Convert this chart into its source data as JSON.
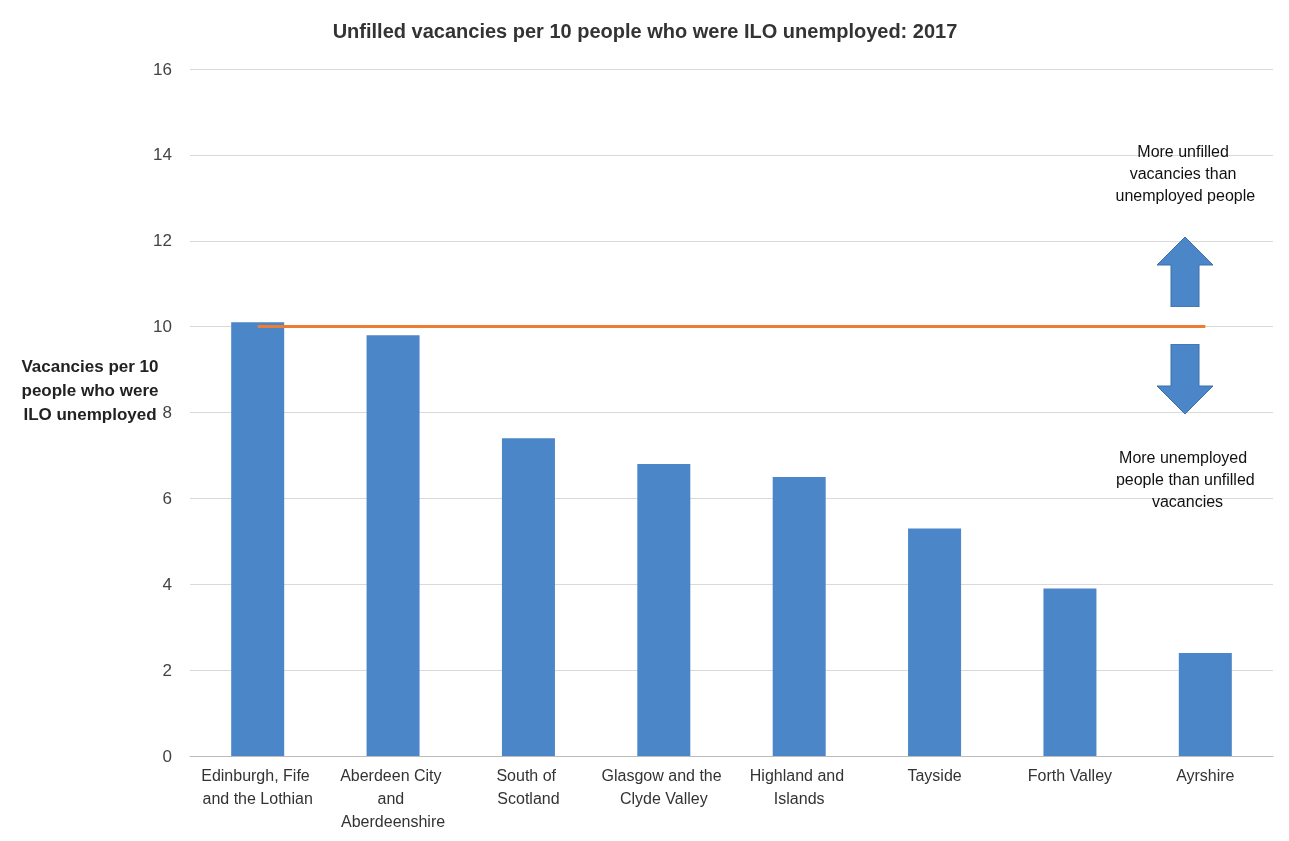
{
  "chart_data": {
    "type": "bar",
    "title": "Unfilled vacancies per 10 people who were ILO unemployed: 2017",
    "ylabel": "Vacancies per 10 people who were ILO unemployed",
    "categories": [
      "Edinburgh, Fife and the Lothian",
      "Aberdeen City and Aberdeenshire",
      "South of Scotland",
      "Glasgow and the Clyde Valley",
      "Highland and Islands",
      "Tayside",
      "Forth Valley",
      "Ayrshire"
    ],
    "values": [
      10.1,
      9.8,
      7.4,
      6.8,
      6.5,
      5.3,
      3.9,
      2.4
    ],
    "color": "#4a86c8",
    "ylim": [
      0,
      16
    ],
    "yticks": [
      0,
      2,
      4,
      6,
      8,
      10,
      12,
      14,
      16
    ],
    "grid": "y",
    "ref_lines": [
      {
        "axis": "y",
        "value": 10,
        "color": "#ed7d31"
      }
    ],
    "annotations": [
      "More unfilled vacancies than unemployed people",
      "More unemployed people than unfilled vacancies"
    ]
  }
}
